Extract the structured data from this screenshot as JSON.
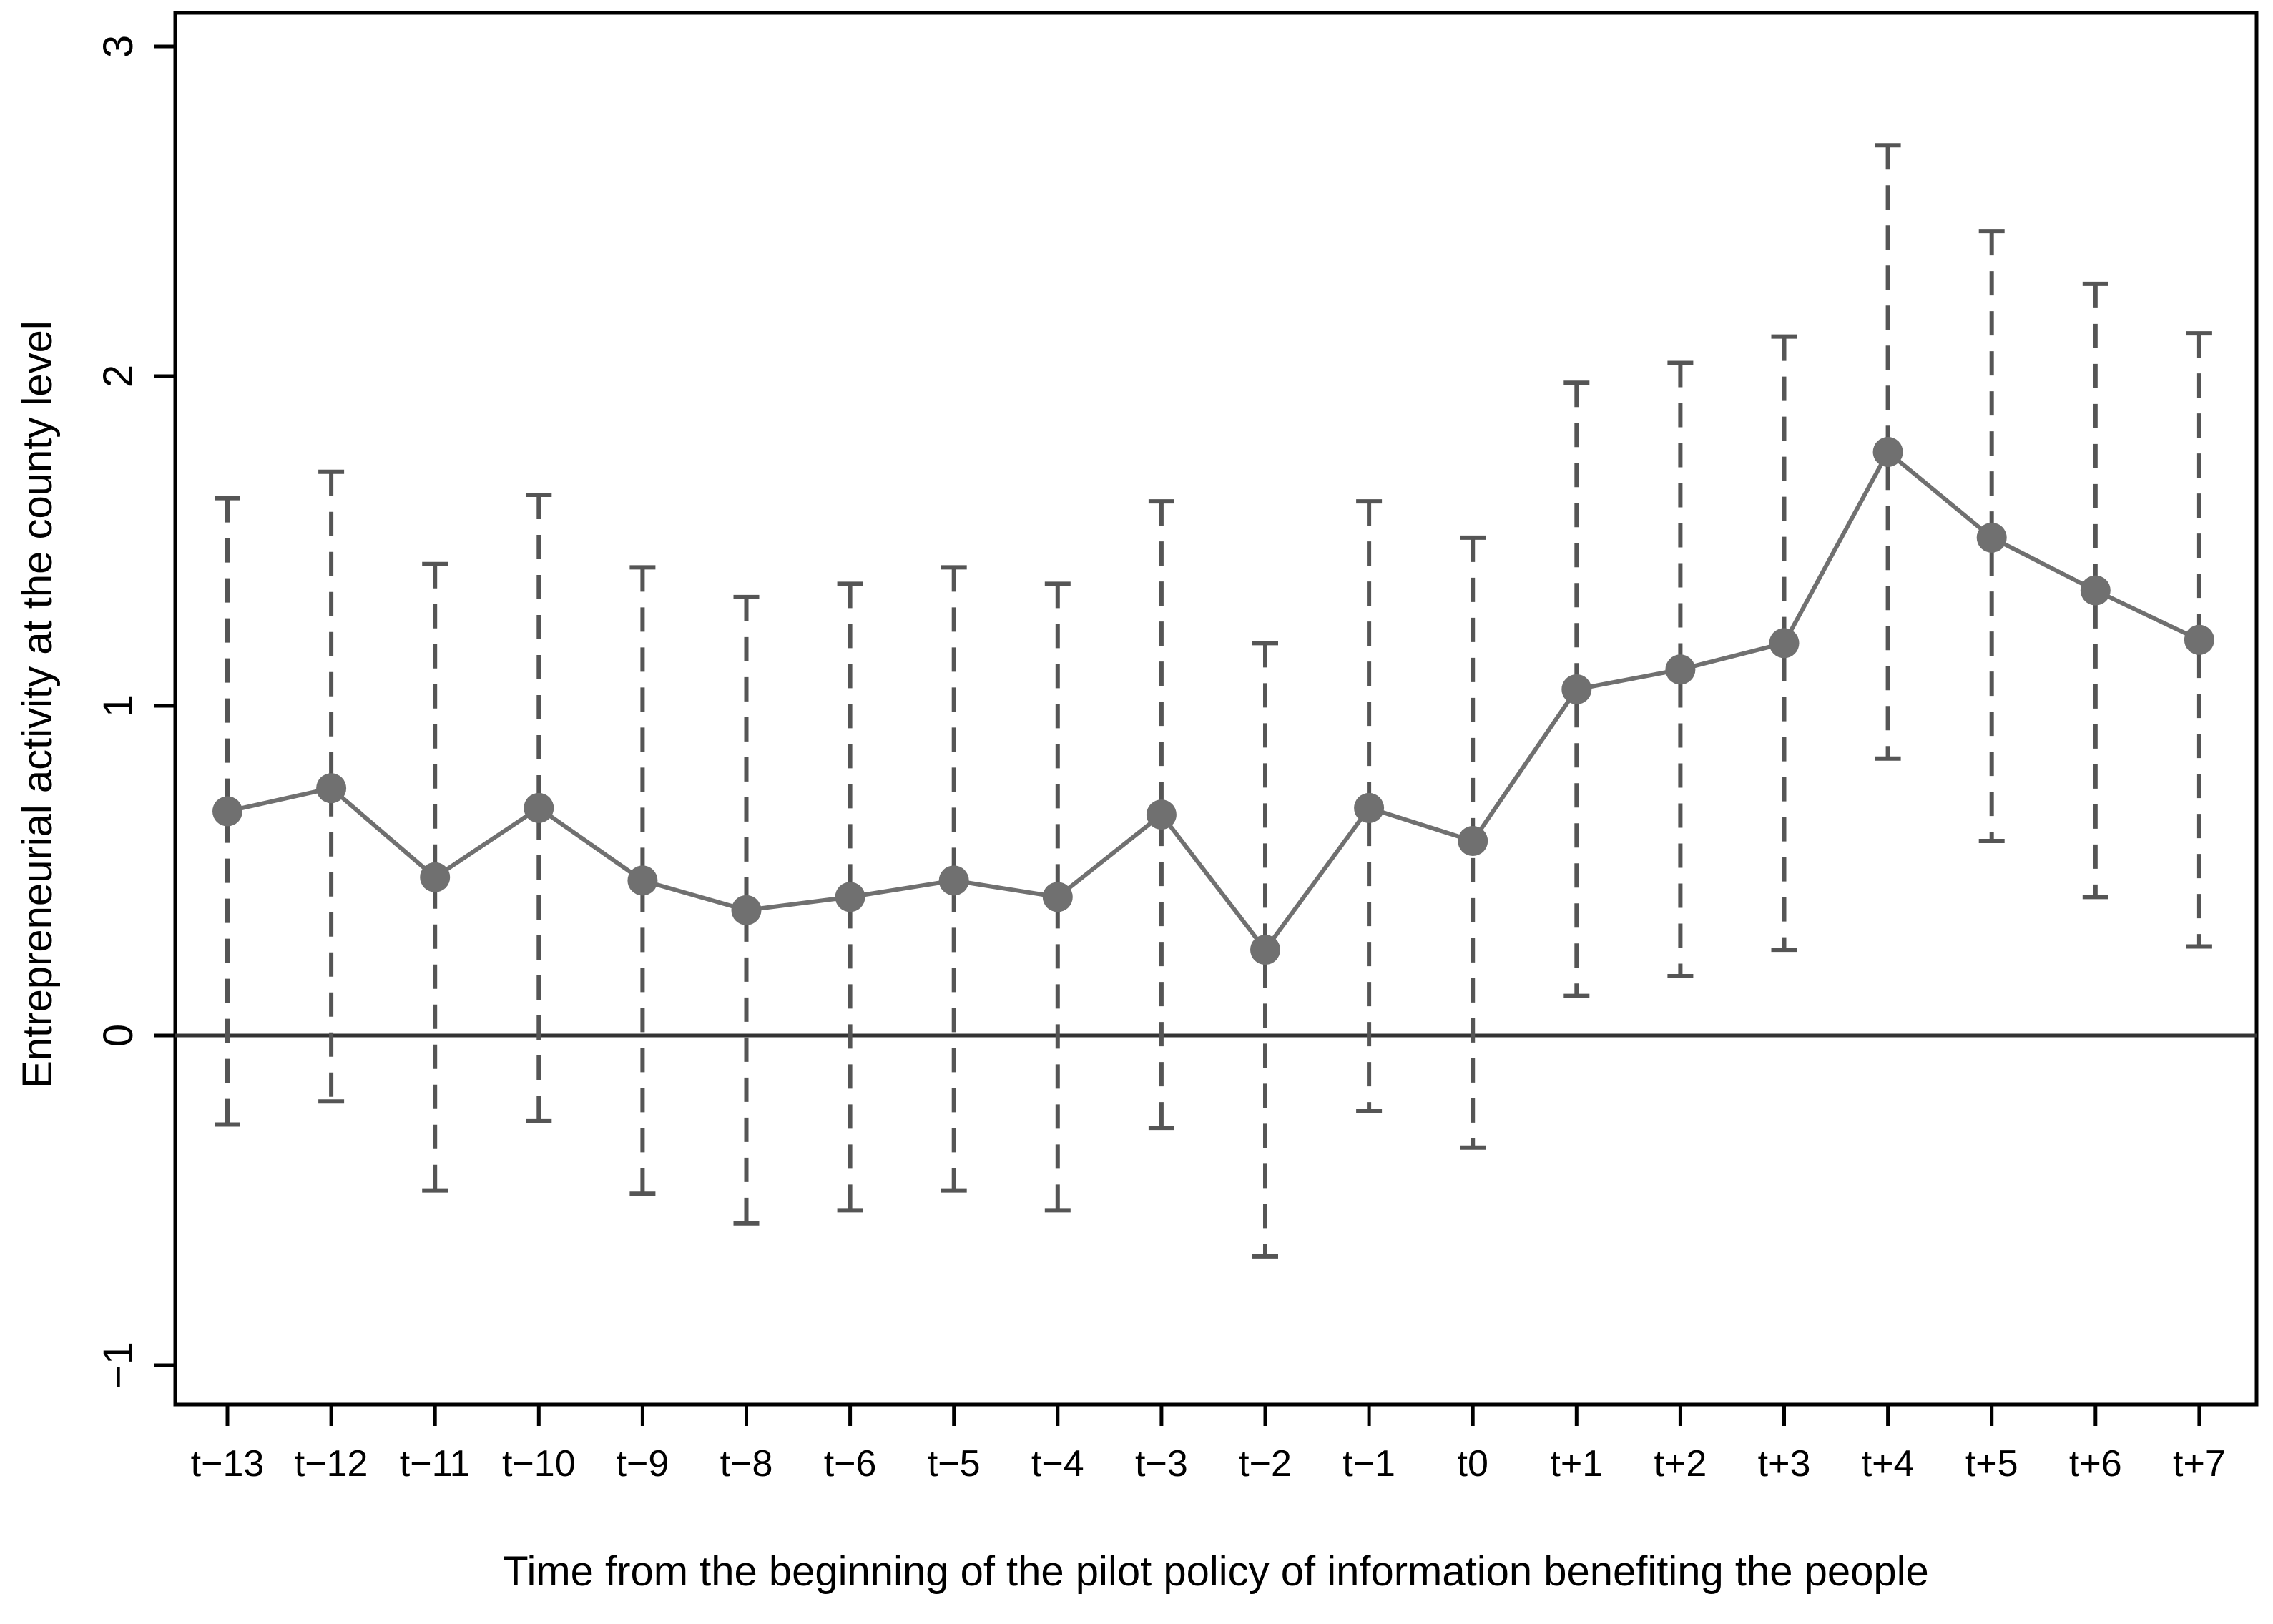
{
  "chart_data": {
    "type": "line",
    "title": "",
    "xlabel": "Time from the beginning of the pilot policy of information benefiting the people",
    "ylabel": "Entrepreneurial activity at the county level",
    "ylim": [
      -1.1,
      3.1
    ],
    "yticks": [
      -1,
      0,
      1,
      2,
      3
    ],
    "ytick_labels": [
      "−1",
      "0",
      "1",
      "2",
      "3"
    ],
    "reference_line": 0,
    "grid": false,
    "legend": "none",
    "categories": [
      "t−13",
      "t−12",
      "t−11",
      "t−10",
      "t−9",
      "t−8",
      "t−6",
      "t−5",
      "t−4",
      "t−3",
      "t−2",
      "t−1",
      "t0",
      "t+1",
      "t+2",
      "t+3",
      "t+4",
      "t+5",
      "t+6",
      "t+7"
    ],
    "series": [
      {
        "values": [
          0.68,
          0.75,
          0.48,
          0.69,
          0.47,
          0.38,
          0.42,
          0.47,
          0.42,
          0.67,
          0.26,
          0.69,
          0.59,
          1.05,
          1.11,
          1.19,
          1.77,
          1.51,
          1.35,
          1.2
        ],
        "ci_lower": [
          -0.27,
          -0.2,
          -0.47,
          -0.26,
          -0.48,
          -0.57,
          -0.53,
          -0.47,
          -0.53,
          -0.28,
          -0.67,
          -0.23,
          -0.34,
          0.12,
          0.18,
          0.26,
          0.84,
          0.59,
          0.42,
          0.27
        ],
        "ci_upper": [
          1.63,
          1.71,
          1.43,
          1.64,
          1.42,
          1.33,
          1.37,
          1.42,
          1.37,
          1.62,
          1.19,
          1.62,
          1.51,
          1.98,
          2.04,
          2.12,
          2.7,
          2.44,
          2.28,
          2.13
        ]
      }
    ],
    "colors": {
      "series": "#707070",
      "error_bars": "#555555",
      "reference_line": "#333333",
      "axes": "#000000"
    }
  }
}
